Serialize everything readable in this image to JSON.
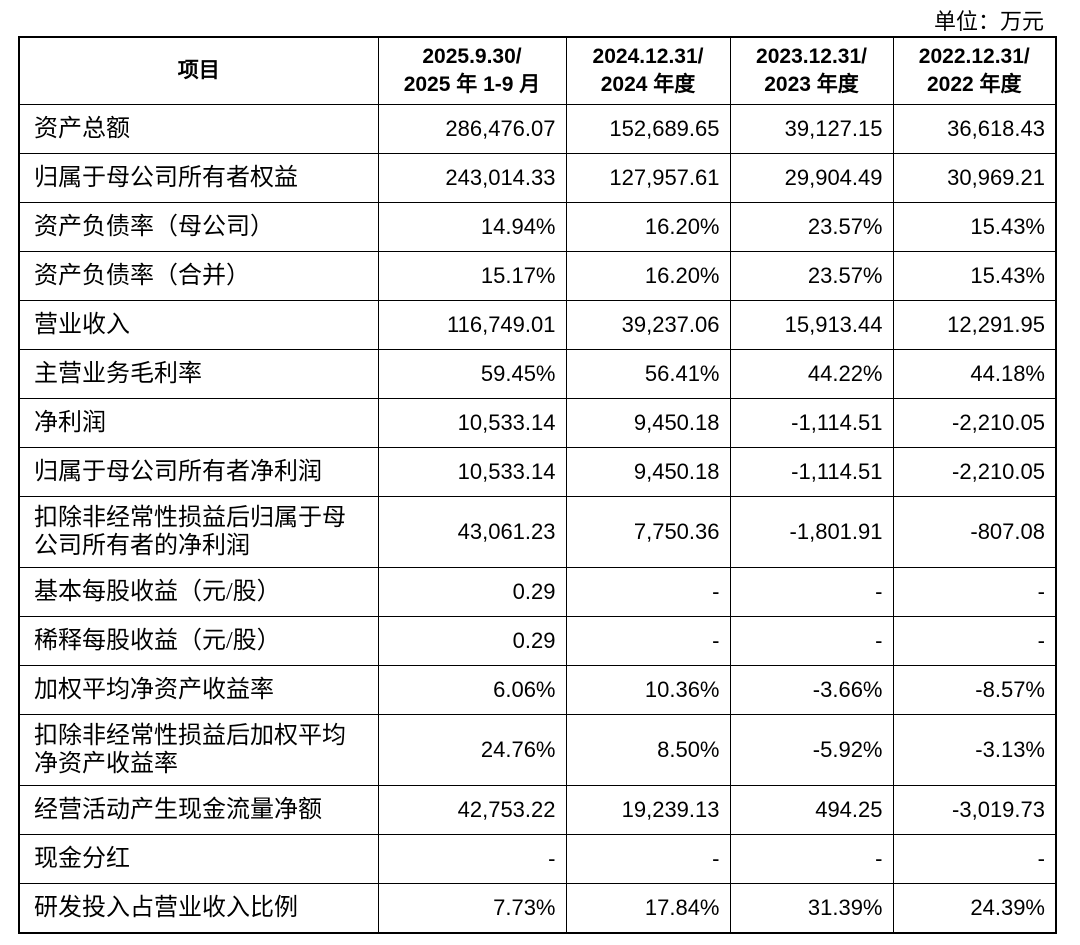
{
  "unit": "单位：万元",
  "table": {
    "header": [
      "项目",
      "2025.9.30/\n2025 年 1-9 月",
      "2024.12.31/\n2024 年度",
      "2023.12.31/\n2023 年度",
      "2022.12.31/\n2022 年度"
    ],
    "rows": [
      [
        "资产总额",
        "286,476.07",
        "152,689.65",
        "39,127.15",
        "36,618.43"
      ],
      [
        "归属于母公司所有者权益",
        "243,014.33",
        "127,957.61",
        "29,904.49",
        "30,969.21"
      ],
      [
        "资产负债率（母公司）",
        "14.94%",
        "16.20%",
        "23.57%",
        "15.43%"
      ],
      [
        "资产负债率（合并）",
        "15.17%",
        "16.20%",
        "23.57%",
        "15.43%"
      ],
      [
        "营业收入",
        "116,749.01",
        "39,237.06",
        "15,913.44",
        "12,291.95"
      ],
      [
        "主营业务毛利率",
        "59.45%",
        "56.41%",
        "44.22%",
        "44.18%"
      ],
      [
        "净利润",
        "10,533.14",
        "9,450.18",
        "-1,114.51",
        "-2,210.05"
      ],
      [
        "归属于母公司所有者净利润",
        "10,533.14",
        "9,450.18",
        "-1,114.51",
        "-2,210.05"
      ],
      [
        "扣除非经常性损益后归属于母公司所有者的净利润",
        "43,061.23",
        "7,750.36",
        "-1,801.91",
        "-807.08"
      ],
      [
        "基本每股收益（元/股）",
        "0.29",
        "-",
        "-",
        "-"
      ],
      [
        "稀释每股收益（元/股）",
        "0.29",
        "-",
        "-",
        "-"
      ],
      [
        "加权平均净资产收益率",
        "6.06%",
        "10.36%",
        "-3.66%",
        "-8.57%"
      ],
      [
        "扣除非经常性损益后加权平均净资产收益率",
        "24.76%",
        "8.50%",
        "-5.92%",
        "-3.13%"
      ],
      [
        "经营活动产生现金流量净额",
        "42,753.22",
        "19,239.13",
        "494.25",
        "-3,019.73"
      ],
      [
        "现金分红",
        "-",
        "-",
        "-",
        "-"
      ],
      [
        "研发投入占营业收入比例",
        "7.73%",
        "17.84%",
        "31.39%",
        "24.39%"
      ]
    ]
  }
}
